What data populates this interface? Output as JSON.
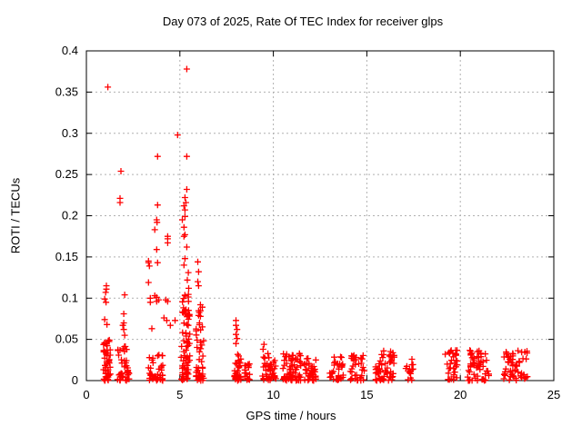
{
  "chart_data": {
    "type": "scatter",
    "title": "Day 073 of 2025, Rate Of TEC Index for receiver glps",
    "xlabel": "GPS time / hours",
    "ylabel": "ROTI / TECUs",
    "xlim": [
      0,
      25
    ],
    "ylim": [
      0,
      0.4
    ],
    "x_ticks": {
      "values": [
        0,
        5,
        10,
        15,
        20,
        25
      ],
      "labels": [
        "0",
        "5",
        "10",
        "15",
        "20",
        "25"
      ]
    },
    "y_ticks": {
      "values": [
        0,
        0.05,
        0.1,
        0.15,
        0.2,
        0.25,
        0.3,
        0.35,
        0.4
      ],
      "labels": [
        "0",
        "0.05",
        "0.1",
        "0.15",
        "0.2",
        "0.25",
        "0.3",
        "0.35",
        "0.4"
      ]
    },
    "grid": true,
    "legend": "none",
    "marker": {
      "shape": "plus",
      "color": "#ff0000",
      "size": 7,
      "stroke_width": 1.3
    },
    "colors": {
      "background": "#ffffff",
      "axis": "#000000",
      "grid": "#b0b0b0",
      "text": "#000000",
      "series": "#ff0000"
    },
    "points": [
      [
        1.15,
        0.356
      ],
      [
        1.07,
        0.115
      ],
      [
        1.07,
        0.111
      ],
      [
        1.03,
        0.107
      ],
      [
        0.98,
        0.099
      ],
      [
        1.05,
        0.095
      ],
      [
        0.98,
        0.074
      ],
      [
        1.1,
        0.068
      ],
      [
        1.85,
        0.254
      ],
      [
        1.8,
        0.221
      ],
      [
        1.8,
        0.216
      ],
      [
        2.05,
        0.104
      ],
      [
        2.0,
        0.081
      ],
      [
        1.95,
        0.067
      ],
      [
        2.0,
        0.07
      ],
      [
        2.0,
        0.062
      ],
      [
        2.05,
        0.055
      ],
      [
        3.32,
        0.145
      ],
      [
        3.32,
        0.143
      ],
      [
        3.37,
        0.139
      ],
      [
        3.32,
        0.119
      ],
      [
        3.42,
        0.1
      ],
      [
        3.42,
        0.095
      ],
      [
        3.5,
        0.063
      ],
      [
        3.81,
        0.272
      ],
      [
        3.81,
        0.213
      ],
      [
        3.76,
        0.195
      ],
      [
        3.78,
        0.192
      ],
      [
        3.66,
        0.183
      ],
      [
        3.76,
        0.159
      ],
      [
        3.81,
        0.143
      ],
      [
        3.66,
        0.103
      ],
      [
        3.76,
        0.101
      ],
      [
        3.86,
        0.098
      ],
      [
        3.76,
        0.096
      ],
      [
        4.35,
        0.175
      ],
      [
        4.35,
        0.172
      ],
      [
        4.35,
        0.167
      ],
      [
        4.25,
        0.098
      ],
      [
        4.35,
        0.096
      ],
      [
        4.15,
        0.076
      ],
      [
        4.3,
        0.073
      ],
      [
        4.49,
        0.067
      ],
      [
        4.88,
        0.298
      ],
      [
        4.74,
        0.073
      ],
      [
        5.37,
        0.378
      ],
      [
        5.37,
        0.272
      ],
      [
        5.37,
        0.232
      ],
      [
        5.27,
        0.222
      ],
      [
        5.32,
        0.216
      ],
      [
        5.22,
        0.212
      ],
      [
        5.27,
        0.207
      ],
      [
        5.27,
        0.199
      ],
      [
        5.13,
        0.195
      ],
      [
        5.22,
        0.186
      ],
      [
        5.27,
        0.177
      ],
      [
        5.22,
        0.175
      ],
      [
        5.37,
        0.162
      ],
      [
        5.27,
        0.148
      ],
      [
        5.22,
        0.14
      ],
      [
        5.45,
        0.131
      ],
      [
        5.4,
        0.122
      ],
      [
        5.47,
        0.112
      ],
      [
        5.47,
        0.079
      ],
      [
        5.96,
        0.144
      ],
      [
        6.0,
        0.132
      ],
      [
        5.96,
        0.12
      ],
      [
        6.0,
        0.115
      ],
      [
        6.1,
        0.092
      ],
      [
        6.0,
        0.079
      ],
      [
        6.05,
        0.07
      ],
      [
        8.0,
        0.073
      ],
      [
        8.0,
        0.067
      ],
      [
        8.06,
        0.062
      ],
      [
        8.0,
        0.056
      ],
      [
        8.06,
        0.051
      ],
      [
        8.0,
        0.045
      ],
      [
        9.5,
        0.044
      ],
      [
        9.45,
        0.038
      ],
      [
        15.9,
        0.036
      ],
      [
        19.4,
        0.034
      ],
      [
        21.0,
        0.036
      ],
      [
        22.8,
        0.033
      ]
    ],
    "dense_clusters": [
      {
        "x_min": 0.9,
        "x_max": 1.3,
        "y_min": 0,
        "y_max": 0.05,
        "count": 48,
        "bottom_bias": 1.8
      },
      {
        "x_min": 1.65,
        "x_max": 2.3,
        "y_min": 0,
        "y_max": 0.045,
        "count": 40,
        "bottom_bias": 2.0
      },
      {
        "x_min": 3.3,
        "x_max": 3.75,
        "y_min": 0,
        "y_max": 0.03,
        "count": 18,
        "bottom_bias": 2.0
      },
      {
        "x_min": 3.72,
        "x_max": 4.1,
        "y_min": 0,
        "y_max": 0.034,
        "count": 22,
        "bottom_bias": 2.0
      },
      {
        "x_min": 5.05,
        "x_max": 5.55,
        "y_min": 0,
        "y_max": 0.105,
        "count": 70,
        "bottom_bias": 1.5
      },
      {
        "x_min": 5.85,
        "x_max": 6.3,
        "y_min": 0,
        "y_max": 0.09,
        "count": 45,
        "bottom_bias": 1.8
      },
      {
        "x_min": 7.9,
        "x_max": 8.3,
        "y_min": 0,
        "y_max": 0.032,
        "count": 35,
        "bottom_bias": 1.6
      },
      {
        "x_min": 8.45,
        "x_max": 8.75,
        "y_min": 0,
        "y_max": 0.022,
        "count": 16,
        "bottom_bias": 1.6
      },
      {
        "x_min": 9.4,
        "x_max": 10.15,
        "y_min": 0,
        "y_max": 0.033,
        "count": 40,
        "bottom_bias": 1.6
      },
      {
        "x_min": 10.5,
        "x_max": 11.55,
        "y_min": 0,
        "y_max": 0.033,
        "count": 65,
        "bottom_bias": 1.5
      },
      {
        "x_min": 11.65,
        "x_max": 12.3,
        "y_min": 0,
        "y_max": 0.028,
        "count": 38,
        "bottom_bias": 1.5
      },
      {
        "x_min": 13.0,
        "x_max": 13.75,
        "y_min": 0,
        "y_max": 0.03,
        "count": 30,
        "bottom_bias": 1.6
      },
      {
        "x_min": 14.1,
        "x_max": 14.9,
        "y_min": 0,
        "y_max": 0.034,
        "count": 36,
        "bottom_bias": 1.6
      },
      {
        "x_min": 15.45,
        "x_max": 16.55,
        "y_min": 0,
        "y_max": 0.036,
        "count": 60,
        "bottom_bias": 1.5
      },
      {
        "x_min": 17.05,
        "x_max": 17.5,
        "y_min": 0,
        "y_max": 0.026,
        "count": 15,
        "bottom_bias": 1.6
      },
      {
        "x_min": 19.15,
        "x_max": 19.85,
        "y_min": 0,
        "y_max": 0.038,
        "count": 30,
        "bottom_bias": 1.6
      },
      {
        "x_min": 20.35,
        "x_max": 21.55,
        "y_min": 0,
        "y_max": 0.037,
        "count": 55,
        "bottom_bias": 1.5
      },
      {
        "x_min": 22.3,
        "x_max": 23.6,
        "y_min": 0,
        "y_max": 0.037,
        "count": 55,
        "bottom_bias": 1.5
      }
    ]
  }
}
